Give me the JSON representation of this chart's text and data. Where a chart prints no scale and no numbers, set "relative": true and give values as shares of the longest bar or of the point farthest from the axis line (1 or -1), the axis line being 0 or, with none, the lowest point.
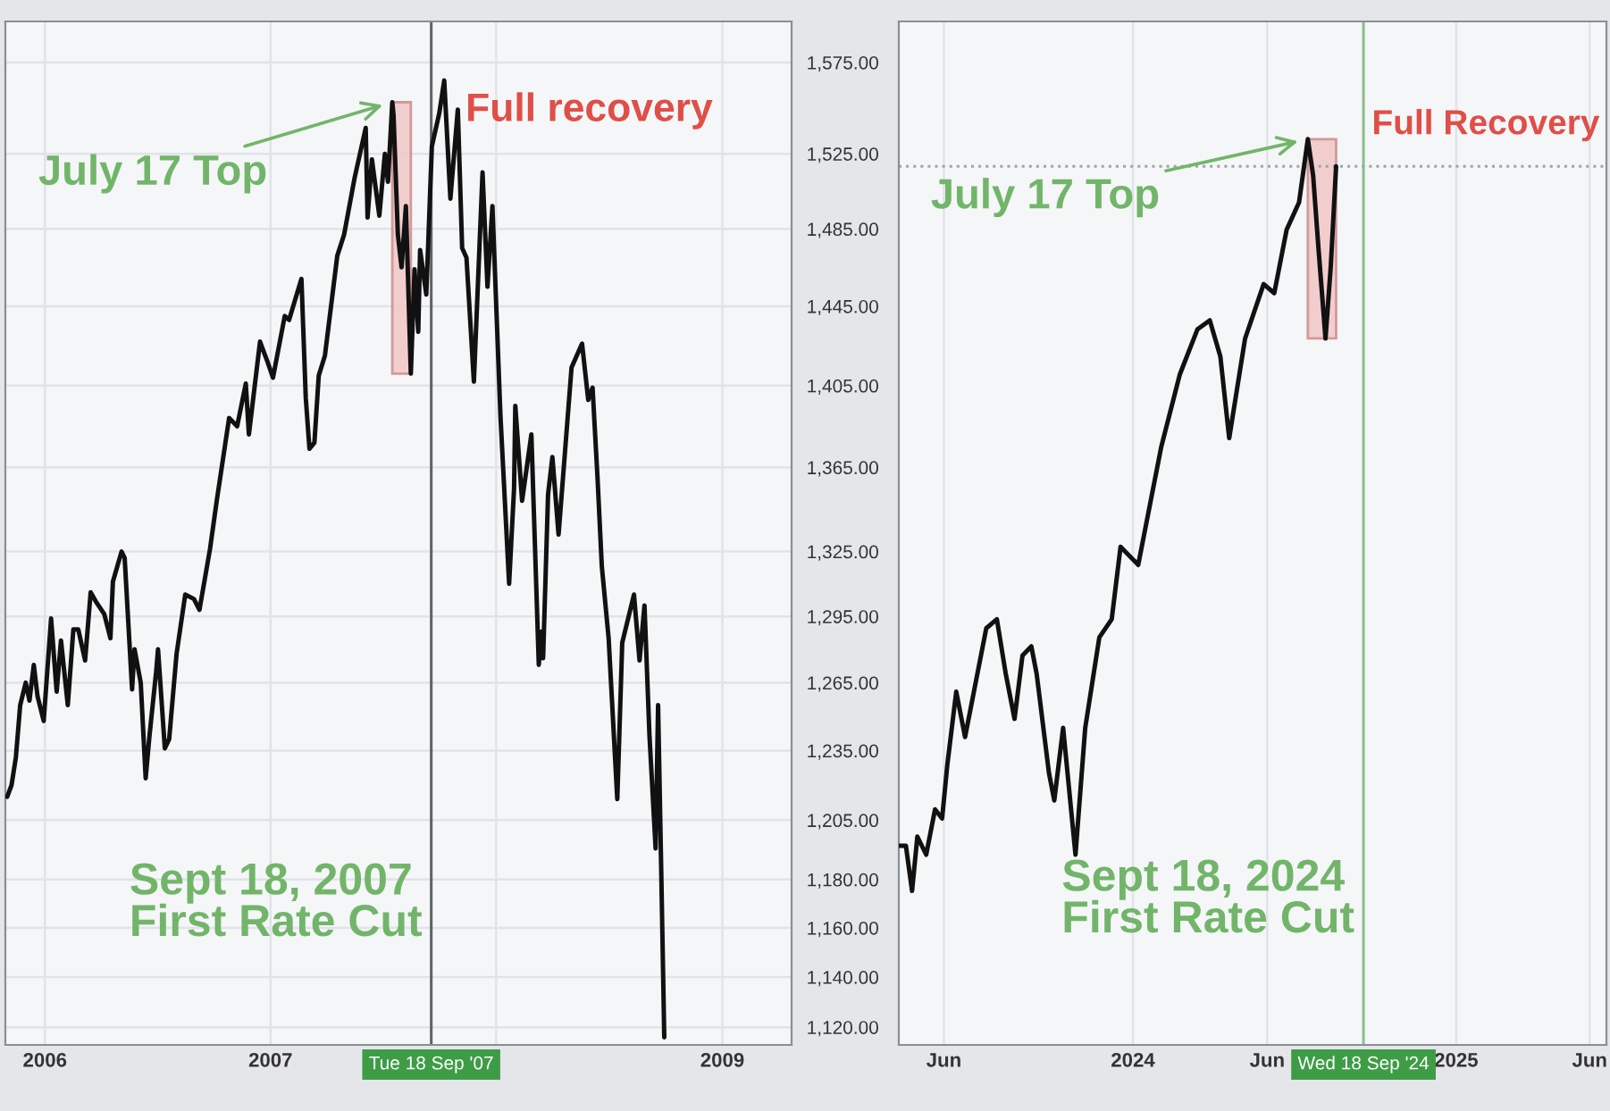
{
  "chart_data": [
    {
      "type": "line",
      "log": "y",
      "grid": true,
      "xlim": [
        "2005-10-29",
        "2009-04-23"
      ],
      "xticks": [
        {
          "value": "2006-01-01",
          "label": "2006"
        },
        {
          "value": "2007-01-01",
          "label": "2007"
        },
        {
          "value": "2008-01-01",
          "label": null
        },
        {
          "value": "2009-01-01",
          "label": "2009"
        }
      ],
      "ylim": [
        1113,
        1598
      ],
      "yticks": [
        {
          "value": 1575,
          "label": "1,575.00"
        },
        {
          "value": 1525,
          "label": "1,525.00"
        },
        {
          "value": 1485,
          "label": "1,485.00"
        },
        {
          "value": 1445,
          "label": "1,445.00"
        },
        {
          "value": 1405,
          "label": "1,405.00"
        },
        {
          "value": 1365,
          "label": "1,365.00"
        },
        {
          "value": 1325,
          "label": "1,325.00"
        },
        {
          "value": 1295,
          "label": "1,295.00"
        },
        {
          "value": 1265,
          "label": "1,265.00"
        },
        {
          "value": 1235,
          "label": "1,235.00"
        },
        {
          "value": 1205,
          "label": "1,205.00"
        },
        {
          "value": 1180,
          "label": "1,180.00"
        },
        {
          "value": 1160,
          "label": "1,160.00"
        },
        {
          "value": 1140,
          "label": "1,140.00"
        },
        {
          "value": 1120,
          "label": "1,120.00"
        }
      ],
      "series": [
        {
          "color": "#111111",
          "x": [
            "2005-11-01",
            "2005-11-08",
            "2005-11-15",
            "2005-11-22",
            "2005-12-01",
            "2005-12-07",
            "2005-12-14",
            "2005-12-20",
            "2005-12-30",
            "2006-01-11",
            "2006-01-20",
            "2006-01-27",
            "2006-02-07",
            "2006-02-16",
            "2006-02-24",
            "2006-03-07",
            "2006-03-16",
            "2006-03-24",
            "2006-04-07",
            "2006-04-17",
            "2006-04-21",
            "2006-05-05",
            "2006-05-10",
            "2006-05-22",
            "2006-05-26",
            "2006-06-05",
            "2006-06-13",
            "2006-06-19",
            "2006-06-30",
            "2006-07-03",
            "2006-07-14",
            "2006-07-21",
            "2006-08-02",
            "2006-08-16",
            "2006-08-30",
            "2006-09-08",
            "2006-09-25",
            "2006-10-06",
            "2006-10-26",
            "2006-11-08",
            "2006-11-22",
            "2006-11-27",
            "2006-12-15",
            "2006-12-27",
            "2007-01-05",
            "2007-01-24",
            "2007-01-31",
            "2007-02-20",
            "2007-02-27",
            "2007-03-05",
            "2007-03-13",
            "2007-03-20",
            "2007-03-30",
            "2007-04-19",
            "2007-04-30",
            "2007-05-17",
            "2007-06-04",
            "2007-06-07",
            "2007-06-14",
            "2007-06-26",
            "2007-07-05",
            "2007-07-10",
            "2007-07-17",
            "2007-07-19",
            "2007-07-26",
            "2007-08-01",
            "2007-08-08",
            "2007-08-16",
            "2007-08-22",
            "2007-08-28",
            "2007-08-31",
            "2007-09-10",
            "2007-09-19",
            "2007-10-01",
            "2007-10-09",
            "2007-10-19",
            "2007-10-31",
            "2007-11-07",
            "2007-11-14",
            "2007-11-26",
            "2007-12-10",
            "2007-12-18",
            "2007-12-26",
            "2008-01-08",
            "2008-01-22",
            "2008-01-30",
            "2008-02-01",
            "2008-02-12",
            "2008-02-27",
            "2008-03-10",
            "2008-03-14",
            "2008-03-17",
            "2008-03-25",
            "2008-04-01",
            "2008-04-11",
            "2008-05-02",
            "2008-05-19",
            "2008-05-29",
            "2008-06-05",
            "2008-06-13",
            "2008-06-20",
            "2008-07-01",
            "2008-07-15",
            "2008-07-23",
            "2008-08-11",
            "2008-08-20",
            "2008-08-28",
            "2008-09-05",
            "2008-09-15",
            "2008-09-19",
            "2008-09-24",
            "2008-09-29"
          ],
          "values": [
            1215,
            1220,
            1232,
            1255,
            1265,
            1257,
            1273,
            1259,
            1248,
            1294,
            1261,
            1284,
            1255,
            1289,
            1289,
            1275,
            1306,
            1302,
            1296,
            1285,
            1311,
            1325,
            1322,
            1262,
            1280,
            1265,
            1223,
            1241,
            1270,
            1280,
            1236,
            1240,
            1278,
            1305,
            1303,
            1298,
            1326,
            1349,
            1389,
            1385,
            1406,
            1381,
            1427,
            1417,
            1409,
            1440,
            1438,
            1459,
            1399,
            1374,
            1377,
            1410,
            1420,
            1471,
            1482,
            1512,
            1539,
            1491,
            1522,
            1492,
            1525,
            1510,
            1553,
            1546,
            1482,
            1465,
            1497,
            1411,
            1464,
            1432,
            1474,
            1451,
            1529,
            1547,
            1565,
            1501,
            1549,
            1475,
            1470,
            1407,
            1515,
            1455,
            1497,
            1390,
            1310,
            1355,
            1395,
            1349,
            1381,
            1273,
            1288,
            1276,
            1352,
            1370,
            1333,
            1414,
            1426,
            1398,
            1404,
            1360,
            1318,
            1285,
            1214,
            1283,
            1305,
            1275,
            1300,
            1242,
            1193,
            1255,
            1185,
            1116
          ]
        }
      ],
      "ref_lines": [
        {
          "axis": "x",
          "value": "2007-09-18",
          "label": "Tue 18 Sep '07",
          "color": "#5f6368"
        }
      ],
      "bands": [
        {
          "axis": "x",
          "from": "2007-07-17",
          "to": "2007-08-16",
          "color": "#f2c9c9"
        }
      ],
      "annotations": [
        {
          "text": "July 17 Top",
          "x": "2007-07-17",
          "y": 1553
        },
        {
          "text": "Full recovery",
          "x": "2007-10-09",
          "y": 1565
        },
        {
          "text": "Sept 18, 2007\nFirst Rate Cut",
          "x": "2007-09-18",
          "y": 1170
        }
      ]
    },
    {
      "type": "line",
      "relative": true,
      "grid": "x",
      "tick_labels": "x",
      "xlim": [
        "2023-04-11",
        "2025-06-20"
      ],
      "xticks": [
        {
          "value": "2023-06-01",
          "label": "Jun"
        },
        {
          "value": "2024-01-01",
          "label": "2024"
        },
        {
          "value": "2024-06-01",
          "label": "Jun"
        },
        {
          "value": "2025-01-01",
          "label": "2025"
        },
        {
          "value": "2025-06-01",
          "label": "Jun"
        }
      ],
      "series": [
        {
          "color": "#111111",
          "x": [
            "2023-04-11",
            "2023-04-19",
            "2023-04-26",
            "2023-05-02",
            "2023-05-12",
            "2023-05-22",
            "2023-05-30",
            "2023-06-05",
            "2023-06-15",
            "2023-06-25",
            "2023-07-05",
            "2023-07-19",
            "2023-07-31",
            "2023-08-10",
            "2023-08-20",
            "2023-08-29",
            "2023-09-08",
            "2023-09-14",
            "2023-09-28",
            "2023-10-04",
            "2023-10-14",
            "2023-10-28",
            "2023-11-08",
            "2023-11-24",
            "2023-12-08",
            "2023-12-18",
            "2024-01-07",
            "2024-01-13",
            "2024-02-02",
            "2024-02-23",
            "2024-03-14",
            "2024-03-28",
            "2024-04-09",
            "2024-04-19",
            "2024-05-07",
            "2024-05-28",
            "2024-06-09",
            "2024-06-23",
            "2024-07-07",
            "2024-07-17",
            "2024-07-23",
            "2024-07-29",
            "2024-08-06",
            "2024-08-12",
            "2024-08-18"
          ],
          "values": [
            0.22,
            0.22,
            0.17,
            0.23,
            0.21,
            0.26,
            0.25,
            0.31,
            0.39,
            0.34,
            0.39,
            0.46,
            0.47,
            0.41,
            0.36,
            0.43,
            0.44,
            0.41,
            0.3,
            0.27,
            0.35,
            0.21,
            0.35,
            0.45,
            0.47,
            0.55,
            0.53,
            0.56,
            0.66,
            0.74,
            0.79,
            0.8,
            0.76,
            0.67,
            0.78,
            0.84,
            0.83,
            0.9,
            0.93,
            1,
            0.96,
            0.88,
            0.78,
            0.86,
            0.97
          ]
        }
      ],
      "ref_lines": [
        {
          "axis": "x",
          "value": "2024-09-18",
          "label": "Wed 18 Sep '24",
          "color": "#8fbf8f"
        },
        {
          "axis": "y",
          "value": 0.97,
          "color": "#a0a4a8",
          "line_style": "dotted"
        }
      ],
      "bands": [
        {
          "axis": "x",
          "from": "2024-07-17",
          "to": "2024-08-18",
          "color": "#f2c9c9"
        }
      ],
      "annotations": [
        {
          "text": "July 17 Top",
          "x": "2024-07-17",
          "y": 1
        },
        {
          "text": "Full Recovery",
          "x": "2024-08-18",
          "y": 0.97
        },
        {
          "text": "Sept 18, 2024\nFirst Rate Cut",
          "x": "2024-09-18",
          "y": 0.16
        }
      ]
    }
  ]
}
